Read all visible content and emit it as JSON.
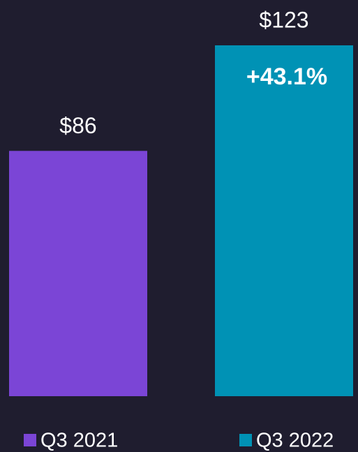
{
  "chart_data": {
    "type": "bar",
    "categories": [
      "Q3 2021",
      "Q3 2022"
    ],
    "values": [
      86,
      123
    ],
    "value_labels": [
      "$86",
      "$123"
    ],
    "colors": [
      "#7b45d6",
      "#0092b5"
    ],
    "annotations": [
      "+43.1%"
    ]
  }
}
